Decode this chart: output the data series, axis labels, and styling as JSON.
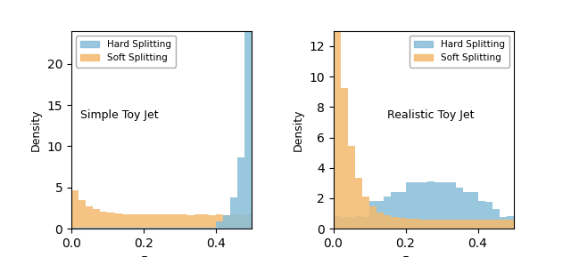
{
  "title_left": "Simple Toy Jet",
  "title_right": "Realistic Toy Jet",
  "xlabel": "$z_{g,\\, simple}$",
  "ylabel": "Density",
  "hard_color": "#87BDD8",
  "soft_color": "#F4BA6E",
  "hard_alpha": 0.85,
  "soft_alpha": 0.85,
  "legend_labels": [
    "Hard Splitting",
    "Soft Splitting"
  ],
  "xlim": [
    0.0,
    0.5
  ],
  "bins": 25,
  "left_ylim": [
    0,
    24
  ],
  "right_ylim": [
    0,
    13
  ],
  "left_yticks": [
    0,
    5,
    10,
    15,
    20
  ],
  "right_yticks": [
    0,
    2,
    4,
    6,
    8,
    10,
    12
  ],
  "seed": 42
}
